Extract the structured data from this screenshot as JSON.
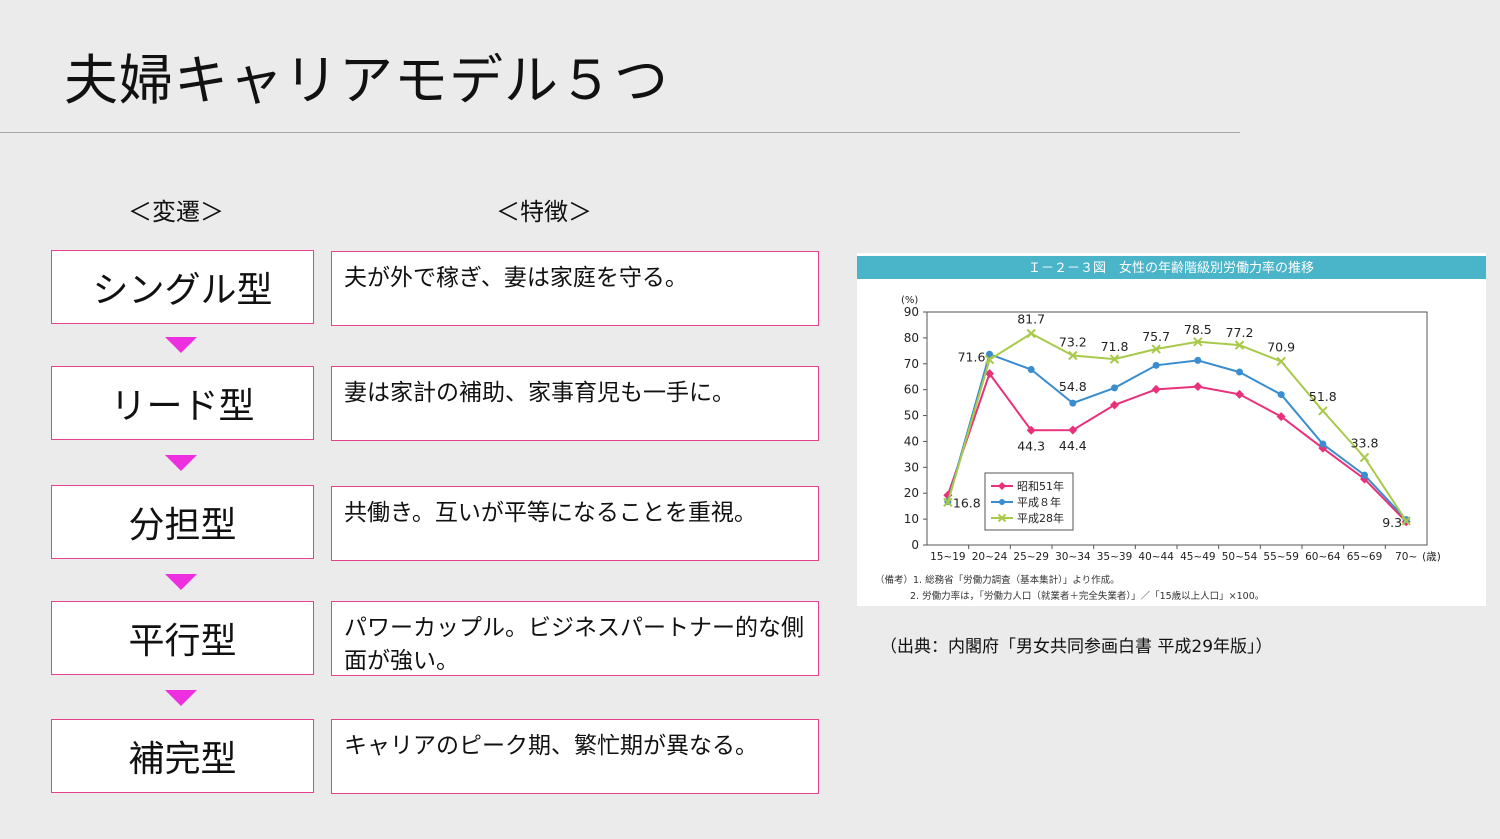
{
  "page": {
    "title": "夫婦キャリアモデル５つ",
    "col_headers": {
      "transition": "＜変遷＞",
      "features": "＜特徴＞"
    }
  },
  "models": [
    {
      "name": "シングル型",
      "feature": "夫が外で稼ぎ、妻は家庭を守る。"
    },
    {
      "name": "リード型",
      "feature": "妻は家計の補助、家事育児も一手に。"
    },
    {
      "name": "分担型",
      "feature": "共働き。互いが平等になることを重視。"
    },
    {
      "name": "平行型",
      "feature": "パワーカップル。ビジネスパートナー的な側面が強い。"
    },
    {
      "name": "補完型",
      "feature": "キャリアのピーク期、繁忙期が異なる。"
    }
  ],
  "figure": {
    "header": "Ｉ－２－３図　女性の年齢階級別労働力率の推移",
    "notes": [
      "（備考）1. 総務省「労働力調査（基本集計）」より作成。",
      "2. 労働力率は，「労働力人口（就業者＋完全失業者）」／「15歳以上人口」×100。"
    ],
    "source": "（出典：内閣府「男女共同参画白書 平成29年版」）"
  },
  "chart_data": {
    "type": "line",
    "title": "Ｉ－２－３図　女性の年齢階級別労働力率の推移",
    "ylabel": "(%)",
    "xlabel": "",
    "x_unit": "(歳)",
    "ylim": [
      0,
      90
    ],
    "yticks": [
      0,
      10,
      20,
      30,
      40,
      50,
      60,
      70,
      80,
      90
    ],
    "categories": [
      "15~19",
      "20~24",
      "25~29",
      "30~34",
      "35~39",
      "40~44",
      "45~49",
      "50~54",
      "55~59",
      "60~64",
      "65~69",
      "70~"
    ],
    "legend_position": "bottom-left",
    "grid": false,
    "series": [
      {
        "name": "昭和51年",
        "color": "#e8317a",
        "marker": "diamond",
        "values": [
          19.2,
          66.2,
          44.3,
          44.4,
          54.1,
          60.1,
          61.2,
          58.2,
          49.6,
          37.4,
          25.5,
          9.0
        ],
        "labels": {
          "2": "44.3",
          "3": "44.4"
        }
      },
      {
        "name": "平成８年",
        "color": "#3a8dcf",
        "marker": "circle",
        "values": [
          16.8,
          73.7,
          67.8,
          54.8,
          60.7,
          69.4,
          71.3,
          66.8,
          58.1,
          39.0,
          27.0,
          9.8
        ],
        "labels": {
          "0": "16.8",
          "3": "54.8"
        }
      },
      {
        "name": "平成28年",
        "color": "#a9c94a",
        "marker": "cross",
        "values": [
          16.5,
          71.6,
          81.7,
          73.2,
          71.8,
          75.7,
          78.5,
          77.2,
          70.9,
          51.8,
          33.8,
          9.3
        ],
        "labels": {
          "1": "71.6",
          "2": "81.7",
          "3": "73.2",
          "4": "71.8",
          "5": "75.7",
          "6": "78.5",
          "7": "77.2",
          "8": "70.9",
          "9": "51.8",
          "10": "33.8",
          "11": "9.3"
        }
      }
    ]
  }
}
